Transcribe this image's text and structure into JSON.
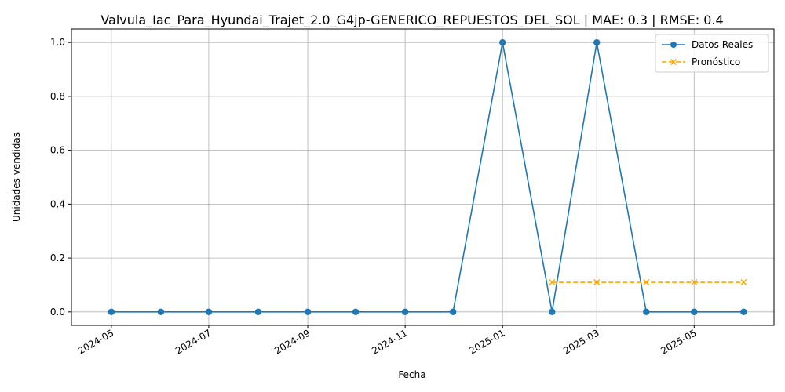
{
  "chart_data": {
    "type": "line",
    "title": "Valvula_Iac_Para_Hyundai_Trajet_2.0_G4jp-GENERICO_REPUESTOS_DEL_SOL | MAE: 0.3 | RMSE: 0.4",
    "xlabel": "Fecha",
    "ylabel": "Unidades vendidas",
    "xlim": [
      "2024-04-06",
      "2025-06-20"
    ],
    "ylim": [
      -0.05,
      1.05
    ],
    "x_ticks": [
      "2024-05",
      "2024-07",
      "2024-09",
      "2024-11",
      "2025-01",
      "2025-03",
      "2025-05"
    ],
    "y_ticks": [
      "0.0",
      "0.2",
      "0.4",
      "0.6",
      "0.8",
      "1.0"
    ],
    "grid": true,
    "legend_position": "top-right",
    "series": [
      {
        "name": "Datos Reales",
        "color": "#1f77b4",
        "line_style": "solid",
        "marker": "circle",
        "x": [
          "2024-05-01",
          "2024-06-01",
          "2024-07-01",
          "2024-08-01",
          "2024-09-01",
          "2024-10-01",
          "2024-11-01",
          "2024-12-01",
          "2025-01-01",
          "2025-02-01",
          "2025-03-01",
          "2025-04-01",
          "2025-05-01",
          "2025-06-01"
        ],
        "values": [
          0,
          0,
          0,
          0,
          0,
          0,
          0,
          0,
          1,
          0,
          1,
          0,
          0,
          0
        ]
      },
      {
        "name": "Pronóstico",
        "color": "#ffa500",
        "line_style": "dashed",
        "marker": "x",
        "x": [
          "2025-02-01",
          "2025-03-01",
          "2025-04-01",
          "2025-05-01",
          "2025-06-01"
        ],
        "values": [
          0.11,
          0.11,
          0.11,
          0.11,
          0.11
        ]
      }
    ]
  }
}
